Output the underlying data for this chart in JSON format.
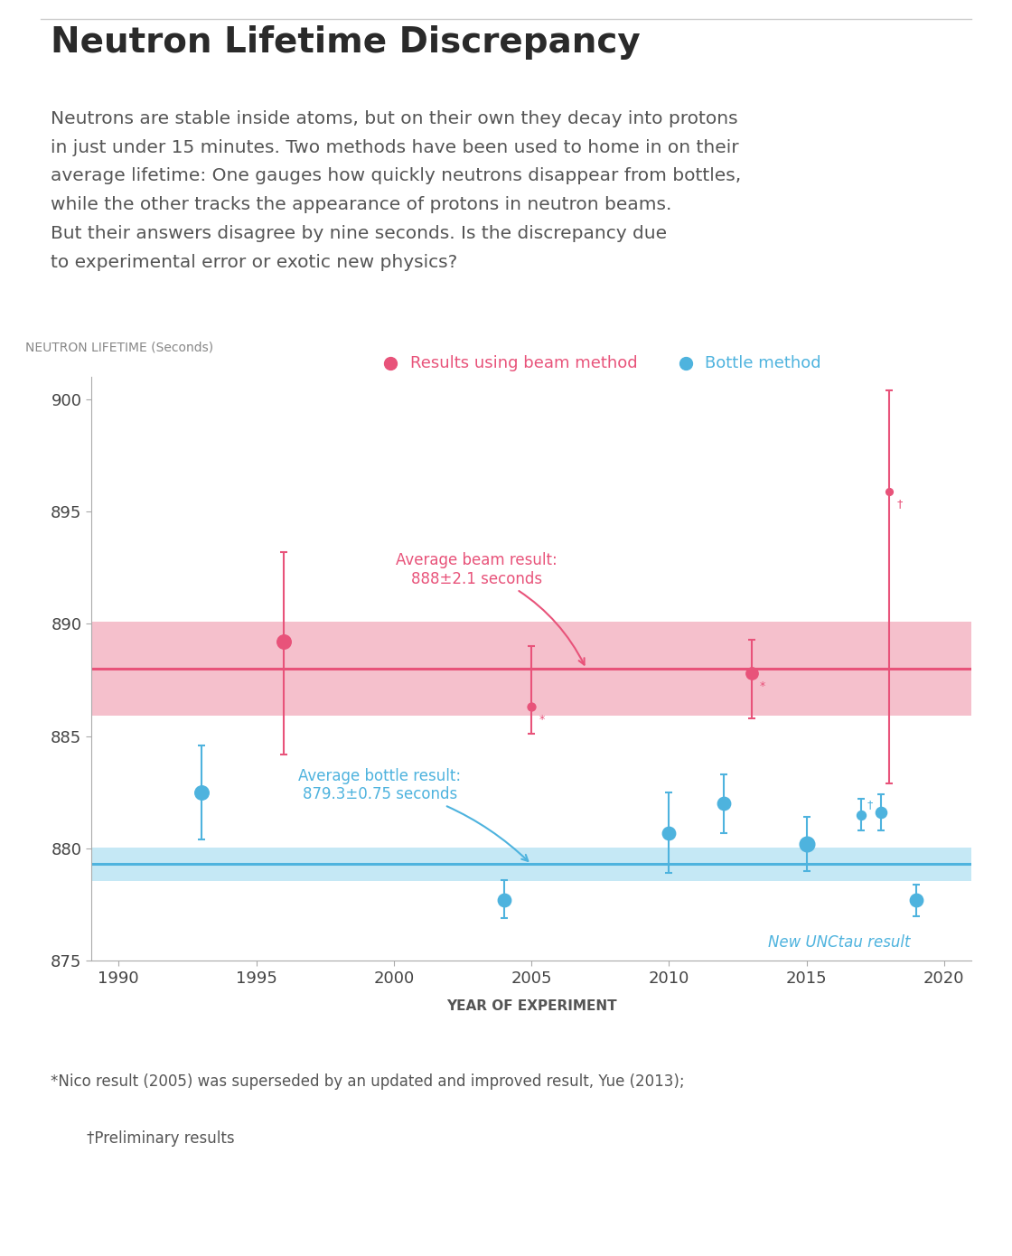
{
  "title": "Neutron Lifetime Discrepancy",
  "subtitle_lines": [
    "Neutrons are stable inside atoms, but on their own they decay into protons",
    "in just under 15 minutes. Two methods have been used to home in on their",
    "average lifetime: One gauges how quickly neutrons disappear from bottles,",
    "while the other tracks the appearance of protons in neutron beams.",
    "But their answers disagree by nine seconds. Is the discrepancy due",
    "to experimental error or exotic new physics?"
  ],
  "ylabel": "NEUTRON LIFETIME (Seconds)",
  "xlabel": "YEAR OF EXPERIMENT",
  "ylim": [
    875,
    901
  ],
  "xlim": [
    1989,
    2021
  ],
  "yticks": [
    875,
    880,
    885,
    890,
    895,
    900
  ],
  "xticks": [
    1990,
    1995,
    2000,
    2005,
    2010,
    2015,
    2020
  ],
  "beam_avg": 888.0,
  "beam_band": 2.1,
  "bottle_avg": 879.3,
  "bottle_band": 0.75,
  "beam_color": "#E8537A",
  "bottle_color": "#4EB3DE",
  "beam_band_color": "#F5C0CC",
  "bottle_band_color": "#C5E8F5",
  "beam_points": [
    {
      "year": 1996,
      "value": 889.2,
      "yerr_lo": 5.0,
      "yerr_hi": 4.0,
      "marker_scale": 1.4
    },
    {
      "year": 2005,
      "value": 886.3,
      "yerr_lo": 1.2,
      "yerr_hi": 2.7,
      "marker_scale": 0.8,
      "note": "*"
    },
    {
      "year": 2013,
      "value": 887.8,
      "yerr_lo": 2.0,
      "yerr_hi": 1.5,
      "marker_scale": 1.2,
      "note": "*"
    },
    {
      "year": 2018,
      "value": 895.9,
      "yerr_lo": 13.0,
      "yerr_hi": 4.5,
      "marker_scale": 0.7,
      "note": "†"
    }
  ],
  "bottle_points": [
    {
      "year": 1993,
      "value": 882.5,
      "yerr_lo": 2.1,
      "yerr_hi": 2.1,
      "marker_scale": 1.4
    },
    {
      "year": 2004,
      "value": 877.7,
      "yerr_lo": 0.8,
      "yerr_hi": 0.9,
      "marker_scale": 1.3
    },
    {
      "year": 2010,
      "value": 880.7,
      "yerr_lo": 1.8,
      "yerr_hi": 1.8,
      "marker_scale": 1.3
    },
    {
      "year": 2012,
      "value": 882.0,
      "yerr_lo": 1.3,
      "yerr_hi": 1.3,
      "marker_scale": 1.3
    },
    {
      "year": 2015,
      "value": 880.2,
      "yerr_lo": 1.2,
      "yerr_hi": 1.2,
      "marker_scale": 1.5
    },
    {
      "year": 2017,
      "value": 881.5,
      "yerr_lo": 0.7,
      "yerr_hi": 0.7,
      "marker_scale": 0.9,
      "note": "†"
    },
    {
      "year": 2017.7,
      "value": 881.6,
      "yerr_lo": 0.8,
      "yerr_hi": 0.8,
      "marker_scale": 1.1
    },
    {
      "year": 2019,
      "value": 877.7,
      "yerr_lo": 0.7,
      "yerr_hi": 0.7,
      "marker_scale": 1.3,
      "unctau": true
    }
  ],
  "beam_label": "Results using beam method",
  "bottle_label": "Bottle method",
  "footnote1": "*Nico result (2005) was superseded by an updated and improved result, Yue (2013);",
  "footnote2": "†Preliminary results",
  "bg_color": "#FFFFFF",
  "text_color": "#4a4a4a",
  "axis_label_color": "#888888"
}
